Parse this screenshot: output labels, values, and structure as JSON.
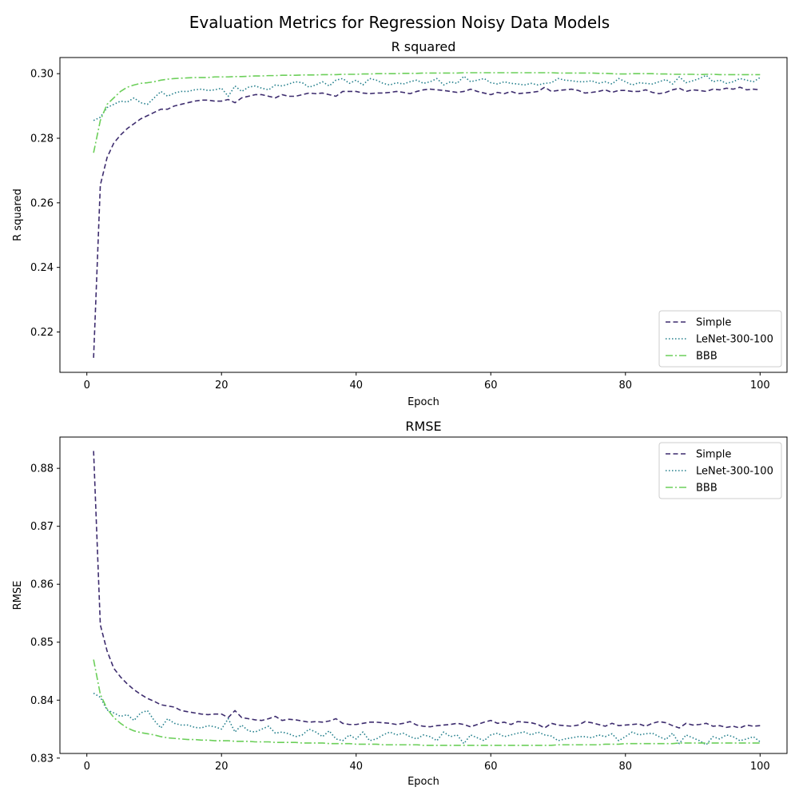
{
  "figure": {
    "suptitle": "Evaluation Metrics for Regression Noisy Data Models"
  },
  "colors": {
    "Simple": "#3d2c6e",
    "LeNet-300-100": "#237f8c",
    "BBB": "#6ccf5a"
  },
  "chart_data": [
    {
      "type": "line",
      "title": "R squared",
      "xlabel": "Epoch",
      "ylabel": "R squared",
      "xlim": [
        -4,
        104
      ],
      "ylim": [
        0.2075,
        0.305
      ],
      "xticks": [
        0,
        20,
        40,
        60,
        80,
        100
      ],
      "yticks": [
        0.22,
        0.24,
        0.26,
        0.28,
        0.3
      ],
      "ytick_labels": [
        "0.22",
        "0.24",
        "0.26",
        "0.28",
        "0.30"
      ],
      "legend_position": "lower-right",
      "series": [
        {
          "name": "Simple",
          "style": "dashed",
          "values": [
            0.212,
            0.2655,
            0.274,
            0.2785,
            0.281,
            0.283,
            0.2845,
            0.286,
            0.287,
            0.288,
            0.289,
            0.289,
            0.29,
            0.2905,
            0.291,
            0.2915,
            0.2918,
            0.2918,
            0.2915,
            0.2915,
            0.292,
            0.291,
            0.2925,
            0.293,
            0.2935,
            0.2935,
            0.293,
            0.2925,
            0.2935,
            0.293,
            0.293,
            0.2935,
            0.294,
            0.2938,
            0.294,
            0.2935,
            0.293,
            0.2945,
            0.2945,
            0.2945,
            0.294,
            0.2938,
            0.294,
            0.294,
            0.2942,
            0.2945,
            0.2942,
            0.2938,
            0.2945,
            0.295,
            0.2952,
            0.295,
            0.2948,
            0.2945,
            0.2942,
            0.2945,
            0.2952,
            0.2945,
            0.294,
            0.2935,
            0.2942,
            0.2938,
            0.2945,
            0.2938,
            0.294,
            0.2942,
            0.2945,
            0.2958,
            0.2945,
            0.2948,
            0.295,
            0.2952,
            0.2948,
            0.294,
            0.2942,
            0.2945,
            0.295,
            0.2942,
            0.2948,
            0.2948,
            0.2945,
            0.2945,
            0.295,
            0.2942,
            0.2938,
            0.2942,
            0.295,
            0.2955,
            0.2945,
            0.295,
            0.2948,
            0.2945,
            0.2952,
            0.295,
            0.2955,
            0.2952,
            0.2958,
            0.295,
            0.2952,
            0.295
          ]
        },
        {
          "name": "LeNet-300-100",
          "style": "dotted",
          "values": [
            0.2855,
            0.2865,
            0.2895,
            0.2905,
            0.2915,
            0.2912,
            0.2925,
            0.291,
            0.2905,
            0.2925,
            0.2945,
            0.293,
            0.294,
            0.2945,
            0.2945,
            0.295,
            0.2952,
            0.2948,
            0.295,
            0.2955,
            0.293,
            0.2962,
            0.2945,
            0.2958,
            0.2962,
            0.2955,
            0.295,
            0.2965,
            0.2962,
            0.2968,
            0.2975,
            0.2972,
            0.2958,
            0.2965,
            0.2975,
            0.2962,
            0.298,
            0.2985,
            0.297,
            0.298,
            0.2965,
            0.2985,
            0.298,
            0.297,
            0.2965,
            0.2972,
            0.2968,
            0.2975,
            0.298,
            0.297,
            0.2975,
            0.2985,
            0.2965,
            0.2975,
            0.297,
            0.2992,
            0.2975,
            0.298,
            0.2985,
            0.2972,
            0.2968,
            0.2975,
            0.297,
            0.2968,
            0.2965,
            0.297,
            0.2965,
            0.297,
            0.2972,
            0.2985,
            0.298,
            0.2978,
            0.2975,
            0.2975,
            0.2978,
            0.297,
            0.2975,
            0.2968,
            0.2985,
            0.2975,
            0.2965,
            0.2972,
            0.297,
            0.2968,
            0.2975,
            0.2982,
            0.2968,
            0.299,
            0.2972,
            0.2978,
            0.2985,
            0.2995,
            0.2975,
            0.298,
            0.297,
            0.2975,
            0.2985,
            0.298,
            0.2975,
            0.2988
          ]
        },
        {
          "name": "BBB",
          "style": "dashdot",
          "values": [
            0.2755,
            0.2855,
            0.2905,
            0.2925,
            0.2945,
            0.2958,
            0.2965,
            0.297,
            0.2972,
            0.2975,
            0.298,
            0.2983,
            0.2985,
            0.2986,
            0.2987,
            0.2988,
            0.2988,
            0.2988,
            0.299,
            0.299,
            0.299,
            0.2991,
            0.2991,
            0.2992,
            0.2993,
            0.2993,
            0.2994,
            0.2994,
            0.2995,
            0.2995,
            0.2995,
            0.2996,
            0.2996,
            0.2996,
            0.2997,
            0.2997,
            0.2997,
            0.2998,
            0.2998,
            0.2998,
            0.2999,
            0.2999,
            0.3,
            0.3,
            0.3,
            0.3,
            0.3001,
            0.3001,
            0.3001,
            0.3002,
            0.3002,
            0.3002,
            0.3002,
            0.3002,
            0.3002,
            0.3003,
            0.3003,
            0.3003,
            0.3003,
            0.3003,
            0.3003,
            0.3003,
            0.3003,
            0.3003,
            0.3003,
            0.3003,
            0.3003,
            0.3003,
            0.3003,
            0.3002,
            0.3002,
            0.3002,
            0.3002,
            0.3002,
            0.3002,
            0.3001,
            0.3001,
            0.3,
            0.2999,
            0.2999,
            0.3,
            0.3,
            0.3,
            0.3,
            0.2999,
            0.2999,
            0.2998,
            0.2998,
            0.2998,
            0.2998,
            0.2997,
            0.2998,
            0.2998,
            0.2997,
            0.2997,
            0.2997,
            0.2997,
            0.2997,
            0.2997,
            0.2997
          ]
        }
      ]
    },
    {
      "type": "line",
      "title": "RMSE",
      "xlabel": "Epoch",
      "ylabel": "RMSE",
      "xlim": [
        -4,
        104
      ],
      "ylim": [
        0.8308,
        0.8854
      ],
      "xticks": [
        0,
        20,
        40,
        60,
        80,
        100
      ],
      "yticks": [
        0.83,
        0.84,
        0.85,
        0.86,
        0.87,
        0.88
      ],
      "ytick_labels": [
        "0.83",
        "0.84",
        "0.85",
        "0.86",
        "0.87",
        "0.88"
      ],
      "legend_position": "upper-right",
      "series": [
        {
          "name": "Simple",
          "style": "dashed",
          "values": [
            0.883,
            0.853,
            0.8485,
            0.8455,
            0.844,
            0.8428,
            0.8418,
            0.841,
            0.8403,
            0.8398,
            0.8392,
            0.839,
            0.8388,
            0.8382,
            0.838,
            0.8378,
            0.8376,
            0.8375,
            0.8376,
            0.8376,
            0.837,
            0.8382,
            0.837,
            0.8368,
            0.8366,
            0.8365,
            0.8368,
            0.8372,
            0.8365,
            0.8367,
            0.8366,
            0.8364,
            0.8362,
            0.8363,
            0.8362,
            0.8364,
            0.8368,
            0.836,
            0.8358,
            0.8358,
            0.836,
            0.8362,
            0.8362,
            0.8361,
            0.836,
            0.8358,
            0.836,
            0.8363,
            0.8357,
            0.8355,
            0.8354,
            0.8356,
            0.8357,
            0.8358,
            0.836,
            0.8358,
            0.8354,
            0.8358,
            0.8362,
            0.8365,
            0.836,
            0.8362,
            0.8358,
            0.8363,
            0.8362,
            0.8361,
            0.8358,
            0.8352,
            0.836,
            0.8357,
            0.8356,
            0.8355,
            0.8357,
            0.8363,
            0.8361,
            0.8358,
            0.8355,
            0.836,
            0.8356,
            0.8357,
            0.8358,
            0.8359,
            0.8355,
            0.836,
            0.8363,
            0.8361,
            0.8356,
            0.8352,
            0.836,
            0.8357,
            0.8358,
            0.836,
            0.8355,
            0.8356,
            0.8353,
            0.8355,
            0.8352,
            0.8357,
            0.8355,
            0.8356
          ]
        },
        {
          "name": "LeNet-300-100",
          "style": "dotted",
          "values": [
            0.8412,
            0.8405,
            0.8383,
            0.8378,
            0.8372,
            0.8375,
            0.8365,
            0.8378,
            0.8382,
            0.8365,
            0.8352,
            0.8368,
            0.836,
            0.8357,
            0.8357,
            0.8353,
            0.8352,
            0.8356,
            0.8354,
            0.835,
            0.8368,
            0.8345,
            0.8357,
            0.8347,
            0.8345,
            0.835,
            0.8355,
            0.8343,
            0.8345,
            0.8342,
            0.8337,
            0.834,
            0.835,
            0.8345,
            0.8337,
            0.8347,
            0.8333,
            0.833,
            0.834,
            0.8333,
            0.8345,
            0.833,
            0.8333,
            0.834,
            0.8345,
            0.834,
            0.8343,
            0.8337,
            0.8333,
            0.834,
            0.8337,
            0.833,
            0.8345,
            0.8337,
            0.834,
            0.8325,
            0.834,
            0.8335,
            0.833,
            0.834,
            0.8343,
            0.8337,
            0.834,
            0.8343,
            0.8345,
            0.834,
            0.8345,
            0.834,
            0.8338,
            0.833,
            0.8333,
            0.8335,
            0.8337,
            0.8337,
            0.8335,
            0.834,
            0.8337,
            0.8342,
            0.833,
            0.8337,
            0.8345,
            0.834,
            0.8342,
            0.8343,
            0.8337,
            0.8332,
            0.8343,
            0.8325,
            0.834,
            0.8335,
            0.833,
            0.8323,
            0.8337,
            0.8333,
            0.834,
            0.8337,
            0.833,
            0.8333,
            0.8337,
            0.8328
          ]
        },
        {
          "name": "BBB",
          "style": "dashdot",
          "values": [
            0.847,
            0.841,
            0.8385,
            0.837,
            0.836,
            0.8352,
            0.8347,
            0.8344,
            0.8342,
            0.834,
            0.8337,
            0.8335,
            0.8334,
            0.8333,
            0.8332,
            0.8332,
            0.8331,
            0.8331,
            0.833,
            0.833,
            0.833,
            0.8329,
            0.8329,
            0.8329,
            0.8328,
            0.8328,
            0.8328,
            0.8327,
            0.8327,
            0.8327,
            0.8327,
            0.8326,
            0.8326,
            0.8326,
            0.8326,
            0.8325,
            0.8325,
            0.8325,
            0.8325,
            0.8324,
            0.8324,
            0.8324,
            0.8324,
            0.8323,
            0.8323,
            0.8323,
            0.8323,
            0.8323,
            0.8323,
            0.8322,
            0.8322,
            0.8322,
            0.8322,
            0.8322,
            0.8322,
            0.8322,
            0.8322,
            0.8322,
            0.8322,
            0.8322,
            0.8322,
            0.8322,
            0.8322,
            0.8322,
            0.8322,
            0.8322,
            0.8322,
            0.8322,
            0.8322,
            0.8323,
            0.8323,
            0.8323,
            0.8323,
            0.8323,
            0.8323,
            0.8323,
            0.8324,
            0.8324,
            0.8324,
            0.8325,
            0.8325,
            0.8325,
            0.8325,
            0.8325,
            0.8325,
            0.8325,
            0.8325,
            0.8326,
            0.8326,
            0.8326,
            0.8326,
            0.8326,
            0.8326,
            0.8326,
            0.8326,
            0.8326,
            0.8326,
            0.8326,
            0.8326,
            0.8326
          ]
        }
      ]
    }
  ]
}
